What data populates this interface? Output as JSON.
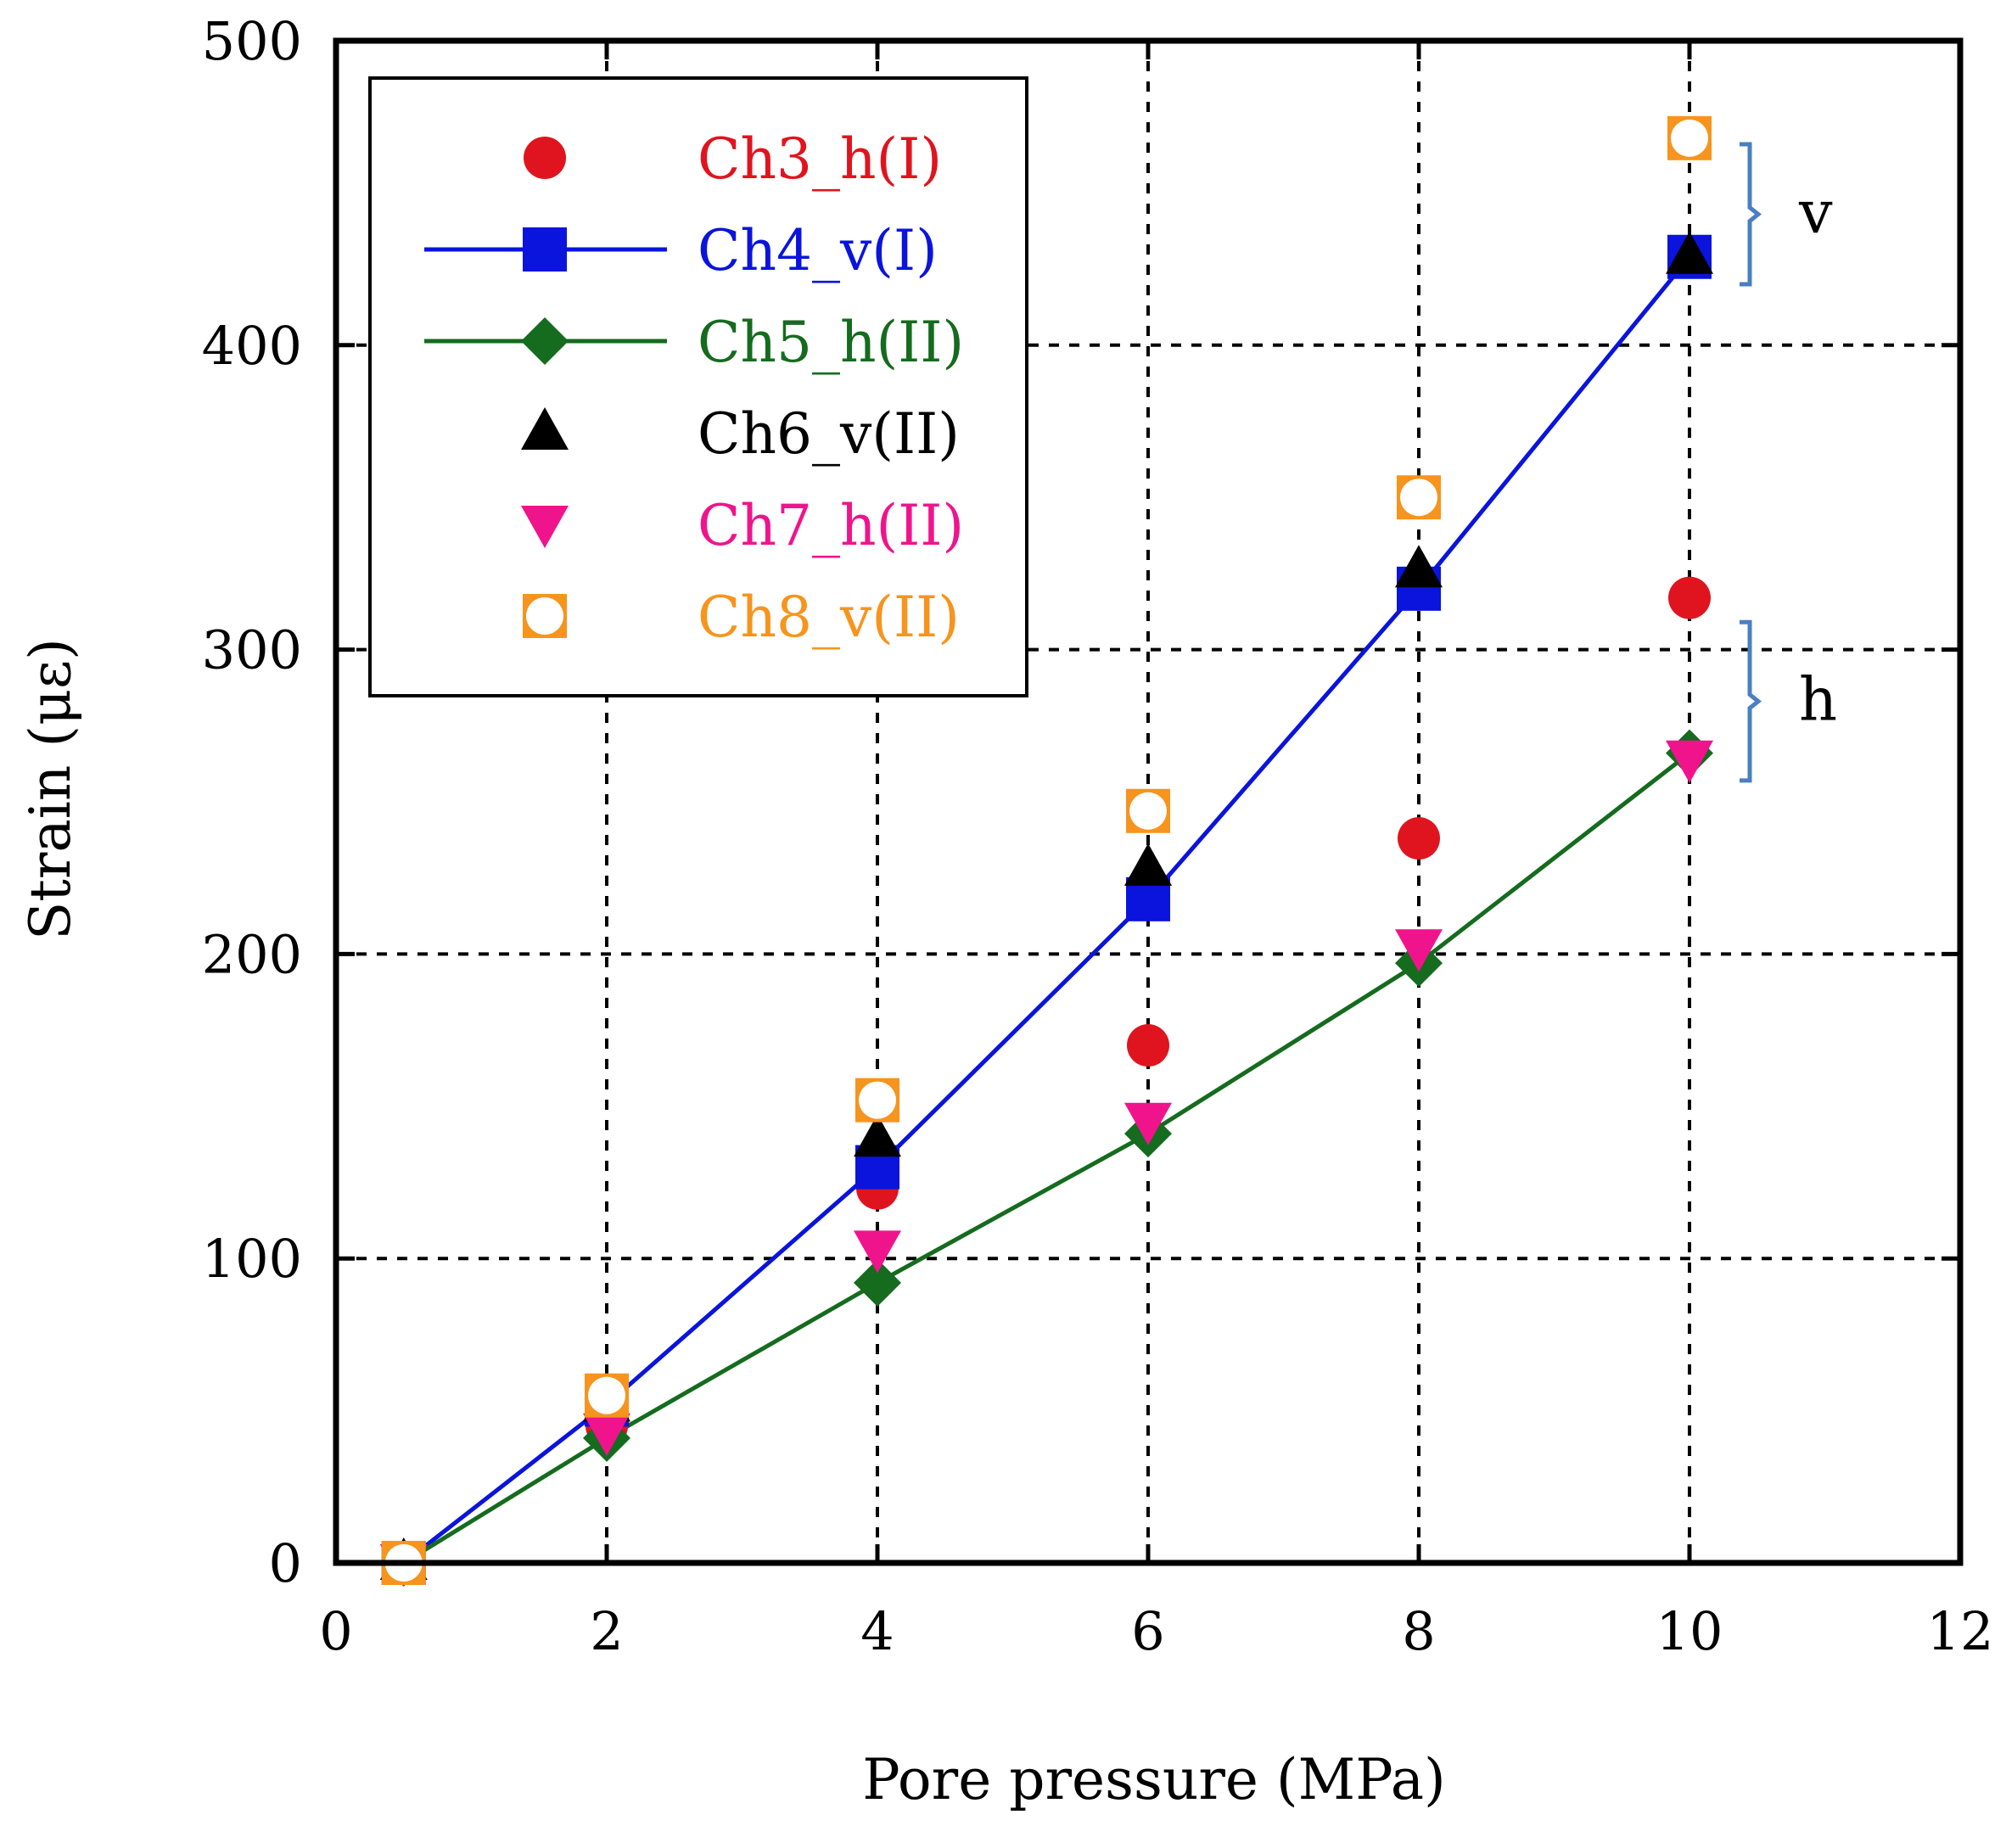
{
  "chart_data": {
    "type": "scatter",
    "title": "",
    "xlabel": "Pore pressure (MPa)",
    "ylabel": "Strain (με)",
    "xlim": [
      0,
      12
    ],
    "ylim": [
      0,
      500
    ],
    "xticks": [
      0,
      2,
      4,
      6,
      8,
      10,
      12
    ],
    "yticks": [
      0,
      100,
      200,
      300,
      400,
      500
    ],
    "xtick_labels": [
      "0",
      "2",
      "4",
      "6",
      "8",
      "10",
      "12"
    ],
    "ytick_labels": [
      "0",
      "100",
      "200",
      "300",
      "400",
      "500"
    ],
    "grid": "dashed major gridlines",
    "legend_position": "top-left",
    "series": [
      {
        "name": "Ch3_h(I)",
        "color": "#e0141e",
        "marker": "circle",
        "line": false,
        "x": [
          0.5,
          2,
          4,
          6,
          8,
          10
        ],
        "y": [
          0,
          45,
          123,
          170,
          238,
          317
        ]
      },
      {
        "name": "Ch4_v(I)",
        "color": "#0a14dc",
        "marker": "square",
        "line": true,
        "x": [
          0.5,
          2,
          4,
          6,
          8,
          10
        ],
        "y": [
          0,
          52,
          130,
          218,
          320,
          429
        ]
      },
      {
        "name": "Ch5_h(II)",
        "color": "#156b1e",
        "marker": "diamond",
        "line": true,
        "x": [
          0.5,
          2,
          4,
          6,
          8,
          10
        ],
        "y": [
          0,
          41,
          92,
          141,
          197,
          266
        ]
      },
      {
        "name": "Ch6_v(II)",
        "color": "#000000",
        "marker": "triangle-up",
        "line": false,
        "x": [
          0.5,
          2,
          4,
          6,
          8,
          10
        ],
        "y": [
          0,
          52,
          139,
          228,
          326,
          429
        ]
      },
      {
        "name": "Ch7_h(II)",
        "color": "#f0148c",
        "marker": "triangle-down",
        "line": false,
        "x": [
          0.5,
          2,
          4,
          6,
          8,
          10
        ],
        "y": [
          0,
          43,
          103,
          145,
          202,
          264
        ]
      },
      {
        "name": "Ch8_v(II)",
        "color": "#f7941d",
        "marker": "open-square-circle",
        "line": false,
        "x": [
          0.5,
          2,
          4,
          6,
          8,
          10
        ],
        "y": [
          0,
          55,
          152,
          247,
          350,
          468
        ]
      }
    ],
    "annotations": [
      {
        "label": "v",
        "color": "#4a7fc1",
        "range": [
          420,
          466
        ]
      },
      {
        "label": "h",
        "color": "#4a7fc1",
        "range": [
          257,
          309
        ]
      }
    ]
  }
}
